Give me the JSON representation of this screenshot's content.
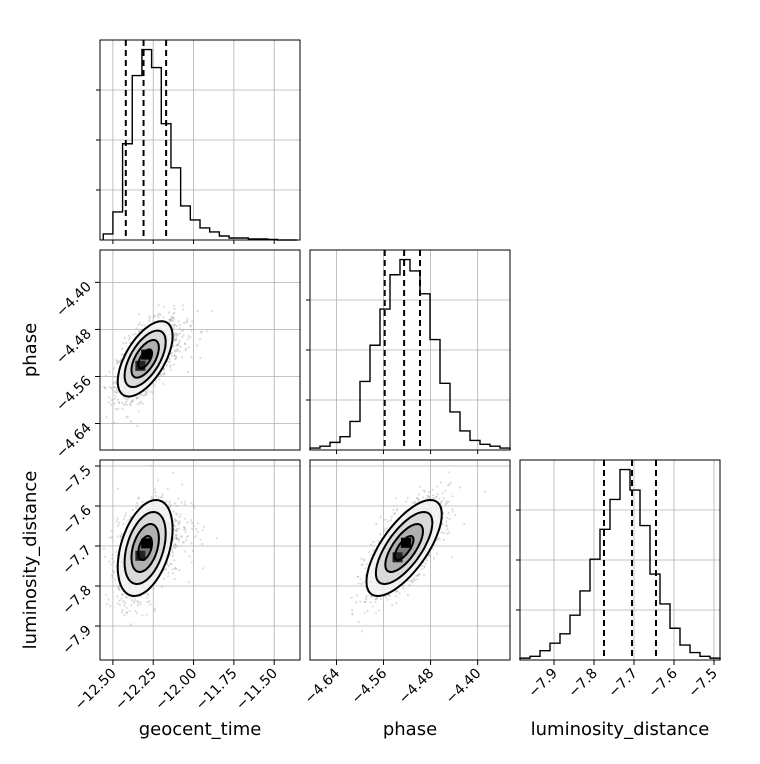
{
  "chart_data": {
    "type": "corner",
    "parameters": [
      "geocent_time",
      "phase",
      "luminosity_distance"
    ],
    "ranges": {
      "geocent_time": [
        -12.58,
        -11.34
      ],
      "phase": [
        -4.685,
        -4.345
      ],
      "luminosity_distance": [
        -7.985,
        -7.485
      ]
    },
    "ticks": {
      "geocent_time": [
        -12.5,
        -12.25,
        -12.0,
        -11.75,
        -11.5
      ],
      "phase": [
        -4.64,
        -4.56,
        -4.48,
        -4.4
      ],
      "luminosity_distance": [
        -7.9,
        -7.8,
        -7.7,
        -7.6,
        -7.5
      ]
    },
    "tick_labels": {
      "geocent_time": [
        "−12.50",
        "−12.25",
        "−12.00",
        "−11.75",
        "−11.50"
      ],
      "phase": [
        "−4.64",
        "−4.56",
        "−4.48",
        "−4.40"
      ],
      "luminosity_distance": [
        "−7.9",
        "−7.8",
        "−7.7",
        "−7.6",
        "−7.5"
      ]
    },
    "quantiles": {
      "geocent_time": [
        -12.42,
        -12.31,
        -12.17
      ],
      "phase": [
        -4.558,
        -4.525,
        -4.498
      ],
      "luminosity_distance": [
        -7.775,
        -7.705,
        -7.645
      ]
    },
    "histograms": {
      "geocent_time": {
        "bin_range": [
          -12.56,
          -11.36
        ],
        "counts": [
          3,
          14,
          48,
          82,
          95,
          86,
          58,
          36,
          17,
          10,
          6,
          4,
          2,
          1,
          1,
          0.5,
          0.5,
          0.3,
          0,
          0
        ]
      },
      "phase": {
        "bin_range": [
          -4.685,
          -4.345
        ],
        "counts": [
          1,
          2,
          4,
          7,
          15,
          36,
          55,
          74,
          92,
          100,
          94,
          82,
          58,
          35,
          20,
          10,
          5,
          3,
          2,
          1
        ]
      },
      "luminosity_distance": {
        "bin_range": [
          -7.985,
          -7.485
        ],
        "counts": [
          1,
          2,
          5,
          9,
          14,
          24,
          37,
          54,
          70,
          86,
          102,
          91,
          72,
          46,
          30,
          17,
          8,
          4,
          2,
          1
        ]
      }
    },
    "scatter": [
      {
        "x": "geocent_time",
        "y": "phase",
        "mean": [
          -12.3,
          -4.53
        ],
        "sd": [
          0.085,
          0.032
        ],
        "corr": 0.6,
        "contour_levels_sigma": [
          0.5,
          1.0,
          1.5,
          2.0
        ]
      },
      {
        "x": "geocent_time",
        "y": "luminosity_distance",
        "mean": [
          -12.3,
          -7.705
        ],
        "sd": [
          0.085,
          0.06
        ],
        "corr": 0.4,
        "contour_levels_sigma": [
          0.5,
          1.0,
          1.5,
          2.0
        ]
      },
      {
        "x": "phase",
        "y": "luminosity_distance",
        "mean": [
          -4.525,
          -7.705
        ],
        "sd": [
          0.032,
          0.06
        ],
        "corr": 0.7,
        "contour_levels_sigma": [
          0.5,
          1.0,
          1.5,
          2.0
        ]
      }
    ],
    "grid": true
  }
}
